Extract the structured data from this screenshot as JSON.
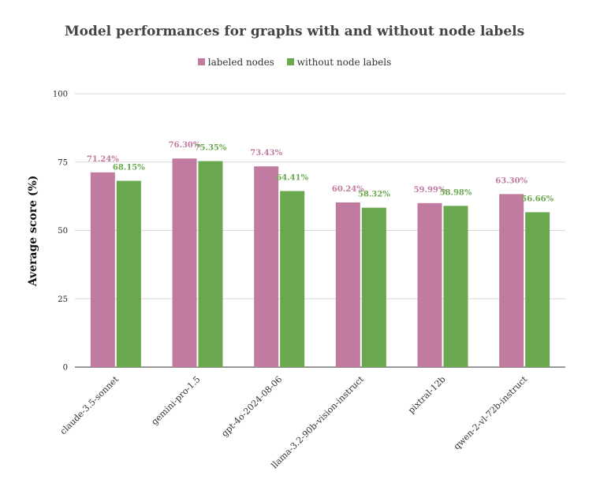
{
  "chart_data": {
    "type": "bar",
    "title": "Model performances for graphs with and without node labels",
    "ylabel": "Average score (%)",
    "xlabel": "",
    "ylim": [
      0,
      100
    ],
    "yticks": [
      0,
      25,
      50,
      75,
      100
    ],
    "grid": true,
    "legend_position": "top",
    "categories": [
      "claude-3.5-sonnet",
      "gemini-pro-1.5",
      "gpt-4o-2024-08-06",
      "llama-3.2-90b-vision-instruct",
      "pixtral-12b",
      "qwen-2-vl-72b-instruct"
    ],
    "series": [
      {
        "name": "labeled nodes",
        "color": "#c27ba0",
        "values": [
          71.24,
          76.3,
          73.43,
          60.24,
          59.99,
          63.3
        ],
        "labels": [
          "71.24%",
          "76.30%",
          "73.43%",
          "60.24%",
          "59.99%",
          "63.30%"
        ]
      },
      {
        "name": "without node labels",
        "color": "#6aa84f",
        "values": [
          68.15,
          75.35,
          64.41,
          58.32,
          58.98,
          56.66
        ],
        "labels": [
          "68.15%",
          "75.35%",
          "64.41%",
          "58.32%",
          "58.98%",
          "56.66%"
        ]
      }
    ]
  }
}
